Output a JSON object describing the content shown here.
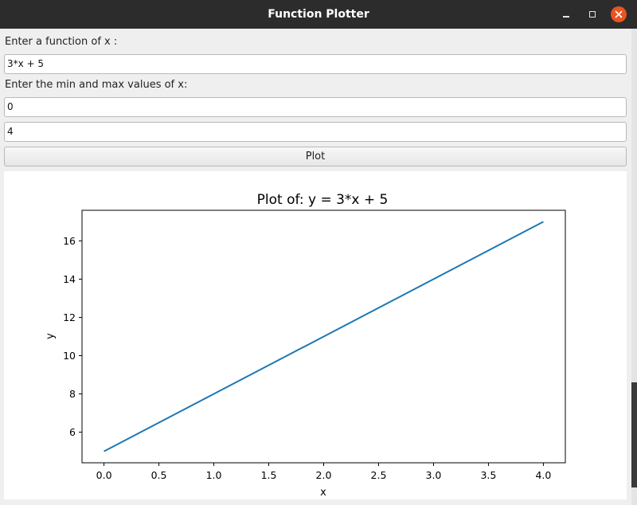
{
  "window": {
    "title": "Function Plotter"
  },
  "form": {
    "function_label": "Enter a function of x :",
    "function_value": "3*x + 5",
    "range_label": "Enter the min and max values of x:",
    "min_value": "0",
    "max_value": "4",
    "plot_button_label": "Plot"
  },
  "icons": {
    "minimize": "minimize-icon",
    "maximize": "maximize-icon",
    "close": "close-icon"
  },
  "colors": {
    "titlebar": "#2c2c2c",
    "close_button": "#e95420",
    "line": "#1f77b4"
  },
  "chart_data": {
    "type": "line",
    "title": "Plot of: y = 3*x + 5",
    "xlabel": "x",
    "ylabel": "y",
    "x": [
      0,
      4
    ],
    "series": [
      {
        "values": [
          5,
          17
        ]
      }
    ],
    "xlim": [
      -0.2,
      4.2
    ],
    "ylim": [
      4.4,
      17.6
    ],
    "xticks": [
      "0.0",
      "0.5",
      "1.0",
      "1.5",
      "2.0",
      "2.5",
      "3.0",
      "3.5",
      "4.0"
    ],
    "yticks": [
      "6",
      "8",
      "10",
      "12",
      "14",
      "16"
    ],
    "grid": false,
    "legend": "none"
  }
}
